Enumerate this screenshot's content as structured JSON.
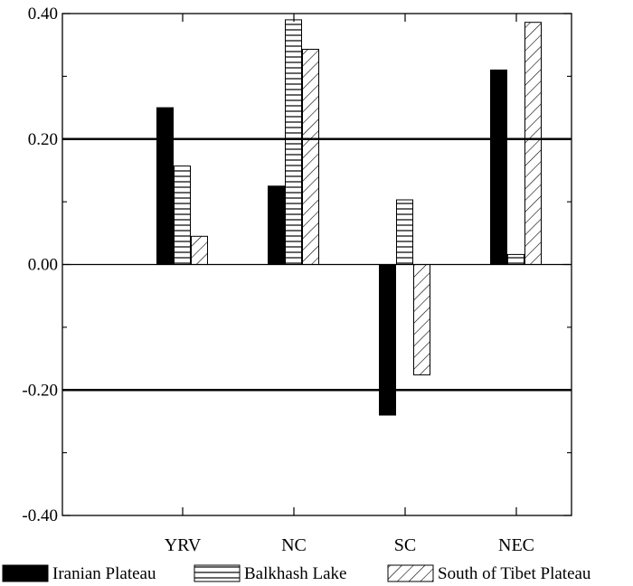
{
  "chart_data": {
    "type": "bar",
    "categories": [
      "YRV",
      "NC",
      "SC",
      "NEC"
    ],
    "series": [
      {
        "name": "Iranian Plateau",
        "pattern": "solid",
        "values": [
          0.25,
          0.125,
          -0.24,
          0.31
        ]
      },
      {
        "name": "Balkhash Lake",
        "pattern": "horizontal-lines",
        "values": [
          0.157,
          0.39,
          0.103,
          0.016
        ]
      },
      {
        "name": "South of Tibet Plateau",
        "pattern": "diagonal-hatch",
        "values": [
          0.045,
          0.343,
          -0.176,
          0.386
        ]
      }
    ],
    "yticks": [
      "-0.40",
      "-0.20",
      "0.00",
      "0.20",
      "0.40"
    ],
    "ytick_values": [
      -0.4,
      -0.2,
      0.0,
      0.2,
      0.4
    ],
    "ylim": [
      -0.4,
      0.4
    ],
    "reference_lines": [
      0.2,
      -0.2
    ],
    "title": "",
    "xlabel": "",
    "ylabel": "",
    "legend_position": "bottom",
    "bar_color": "#000000",
    "background": "#ffffff"
  }
}
